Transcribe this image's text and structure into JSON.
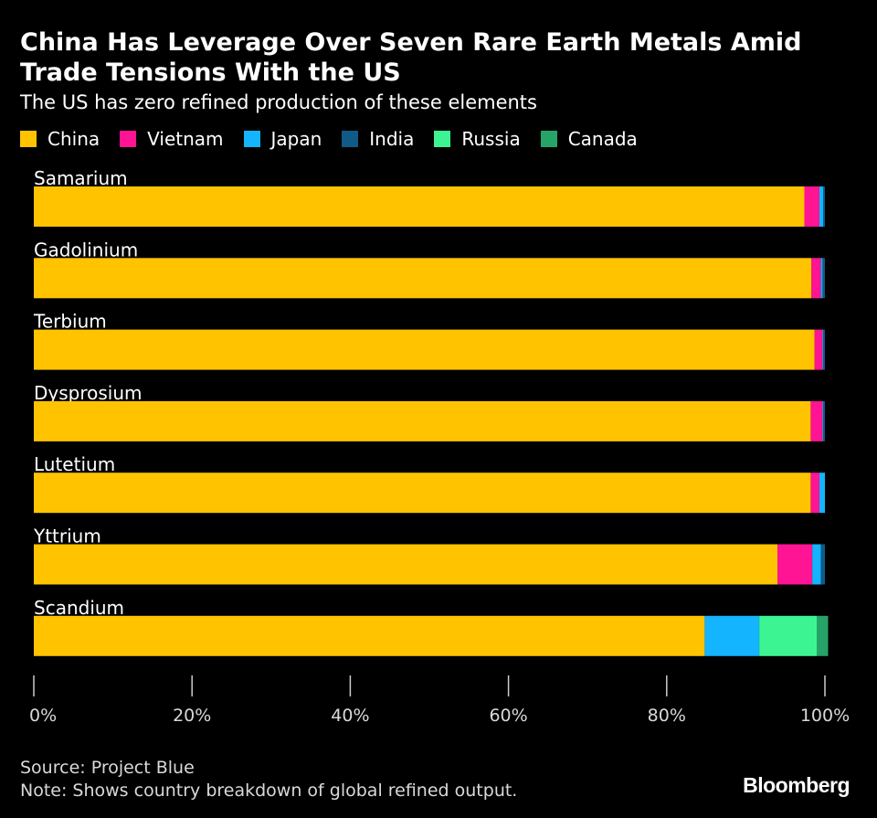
{
  "header": {
    "title": "China Has Leverage Over Seven Rare Earth Metals Amid Trade Tensions With the US",
    "subtitle": "The US has zero refined production of these elements"
  },
  "footer": {
    "source": "Source: Project Blue",
    "note": "Note: Shows country breakdown of global refined output.",
    "brand": "Bloomberg"
  },
  "chart_data": {
    "type": "bar",
    "orientation": "horizontal",
    "stacked": true,
    "title": "China Has Leverage Over Seven Rare Earth Metals Amid Trade Tensions With the US",
    "subtitle": "The US has zero refined production of these elements",
    "categories": [
      "Samarium",
      "Gadolinium",
      "Terbium",
      "Dysprosium",
      "Lutetium",
      "Yttrium",
      "Scandium"
    ],
    "series": [
      {
        "name": "China",
        "color": "#FFC300",
        "values": [
          97.4,
          98.3,
          98.7,
          98.2,
          98.2,
          94.0,
          84.8
        ]
      },
      {
        "name": "Vietnam",
        "color": "#FF1493",
        "values": [
          1.9,
          1.2,
          1.0,
          1.5,
          1.1,
          4.4,
          0
        ]
      },
      {
        "name": "Japan",
        "color": "#14B4FF",
        "values": [
          0.5,
          0.2,
          0.1,
          0.1,
          0.7,
          1.1,
          6.9
        ]
      },
      {
        "name": "India",
        "color": "#0F5A87",
        "values": [
          0.2,
          0.3,
          0.2,
          0.2,
          0,
          0.5,
          0
        ]
      },
      {
        "name": "Russia",
        "color": "#3CF592",
        "values": [
          0,
          0,
          0,
          0,
          0,
          0,
          7.3
        ]
      },
      {
        "name": "Canada",
        "color": "#26A366",
        "values": [
          0,
          0,
          0,
          0,
          0,
          0,
          1.4
        ]
      }
    ],
    "x_ticks": [
      "0%",
      "20%",
      "40%",
      "60%",
      "80%",
      "100%"
    ],
    "xlim": [
      0,
      100
    ],
    "legend_position": "top",
    "grid": false
  }
}
